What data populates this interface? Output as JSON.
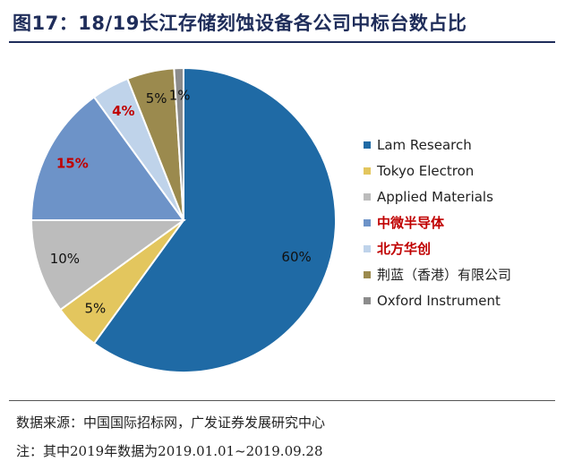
{
  "figure": {
    "title": "图17：18/19长江存储刻蚀设备各公司中标台数占比"
  },
  "chart_data": {
    "type": "pie",
    "start_angle_deg": 0,
    "direction": "clockwise",
    "slices": [
      {
        "name": "Lam Research",
        "value": 60,
        "label": "60%",
        "color": "#1f6aa5",
        "highlight": false
      },
      {
        "name": "Tokyo Electron",
        "value": 5,
        "label": "5%",
        "color": "#e3c65e",
        "highlight": false
      },
      {
        "name": "Applied Materials",
        "value": 10,
        "label": "10%",
        "color": "#bcbcbc",
        "highlight": false
      },
      {
        "name": "中微半导体",
        "value": 15,
        "label": "15%",
        "color": "#6d93c8",
        "highlight": true
      },
      {
        "name": "北方华创",
        "value": 4,
        "label": "4%",
        "color": "#bfd3ea",
        "highlight": true
      },
      {
        "name": "荆蓝（香港）有限公司",
        "value": 5,
        "label": "5%",
        "color": "#9b8a4e",
        "highlight": false
      },
      {
        "name": "Oxford Instrument",
        "value": 1,
        "label": "1%",
        "color": "#8c8c8c",
        "highlight": false
      }
    ],
    "legend_position": "right"
  },
  "footer": {
    "source": "数据来源：中国国际招标网，广发证券发展研究中心",
    "note": "注：其中2019年数据为2019.01.01~2019.09.28"
  }
}
